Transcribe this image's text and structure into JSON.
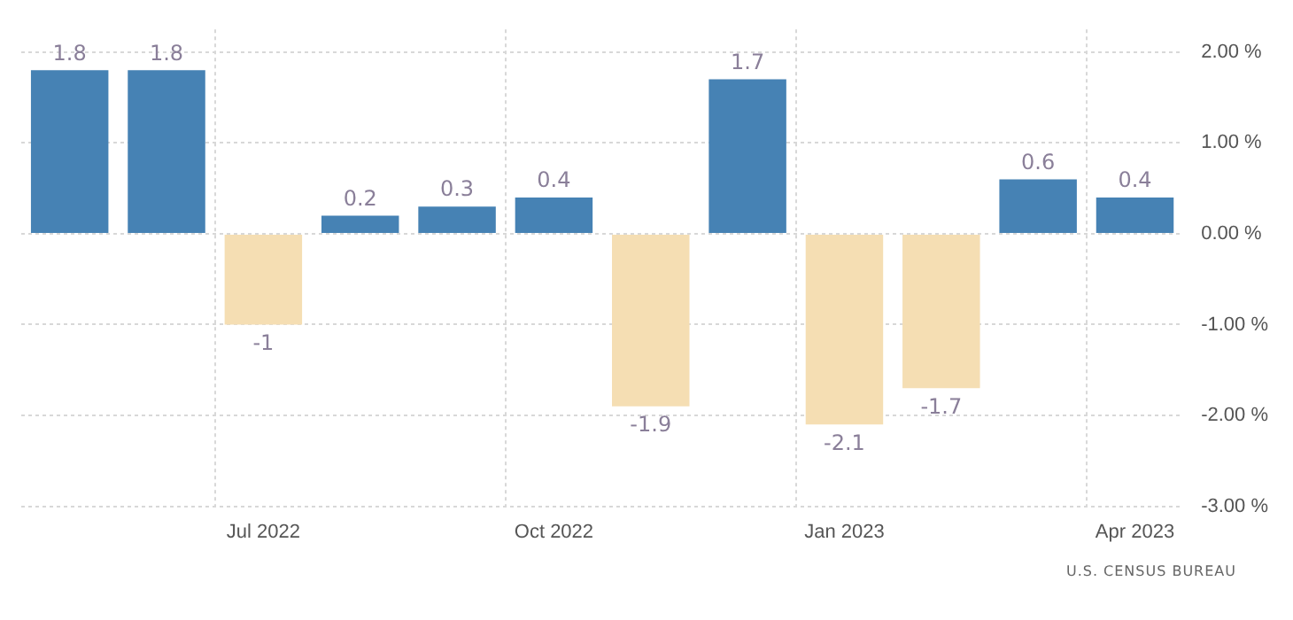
{
  "chart_data": {
    "type": "bar",
    "categories": [
      null,
      null,
      "Jul 2022",
      null,
      null,
      "Oct 2022",
      null,
      null,
      "Jan 2023",
      null,
      null,
      "Apr 2023"
    ],
    "values": [
      1.8,
      1.8,
      -1,
      0.2,
      0.3,
      0.4,
      -1.9,
      1.7,
      -2.1,
      -1.7,
      0.6,
      0.4
    ],
    "colors": [
      "#4682b4",
      "#4682b4",
      "#f5deb3",
      "#4682b4",
      "#4682b4",
      "#4682b4",
      "#f5deb3",
      "#4682b4",
      "#f5deb3",
      "#f5deb3",
      "#4682b4",
      "#4682b4"
    ],
    "ylim": [
      -3,
      2.25
    ],
    "yticks": [
      {
        "value": -3,
        "label": "-3.00 %"
      },
      {
        "value": -2,
        "label": "-2.00 %"
      },
      {
        "value": -1,
        "label": "-1.00 %"
      },
      {
        "value": 0,
        "label": "0.00 %"
      },
      {
        "value": 1,
        "label": "1.00 %"
      },
      {
        "value": 2,
        "label": "2.00 %"
      }
    ],
    "grid": true,
    "data_labels": true,
    "annotations": [
      "U.S. CENSUS BUREAU"
    ]
  }
}
